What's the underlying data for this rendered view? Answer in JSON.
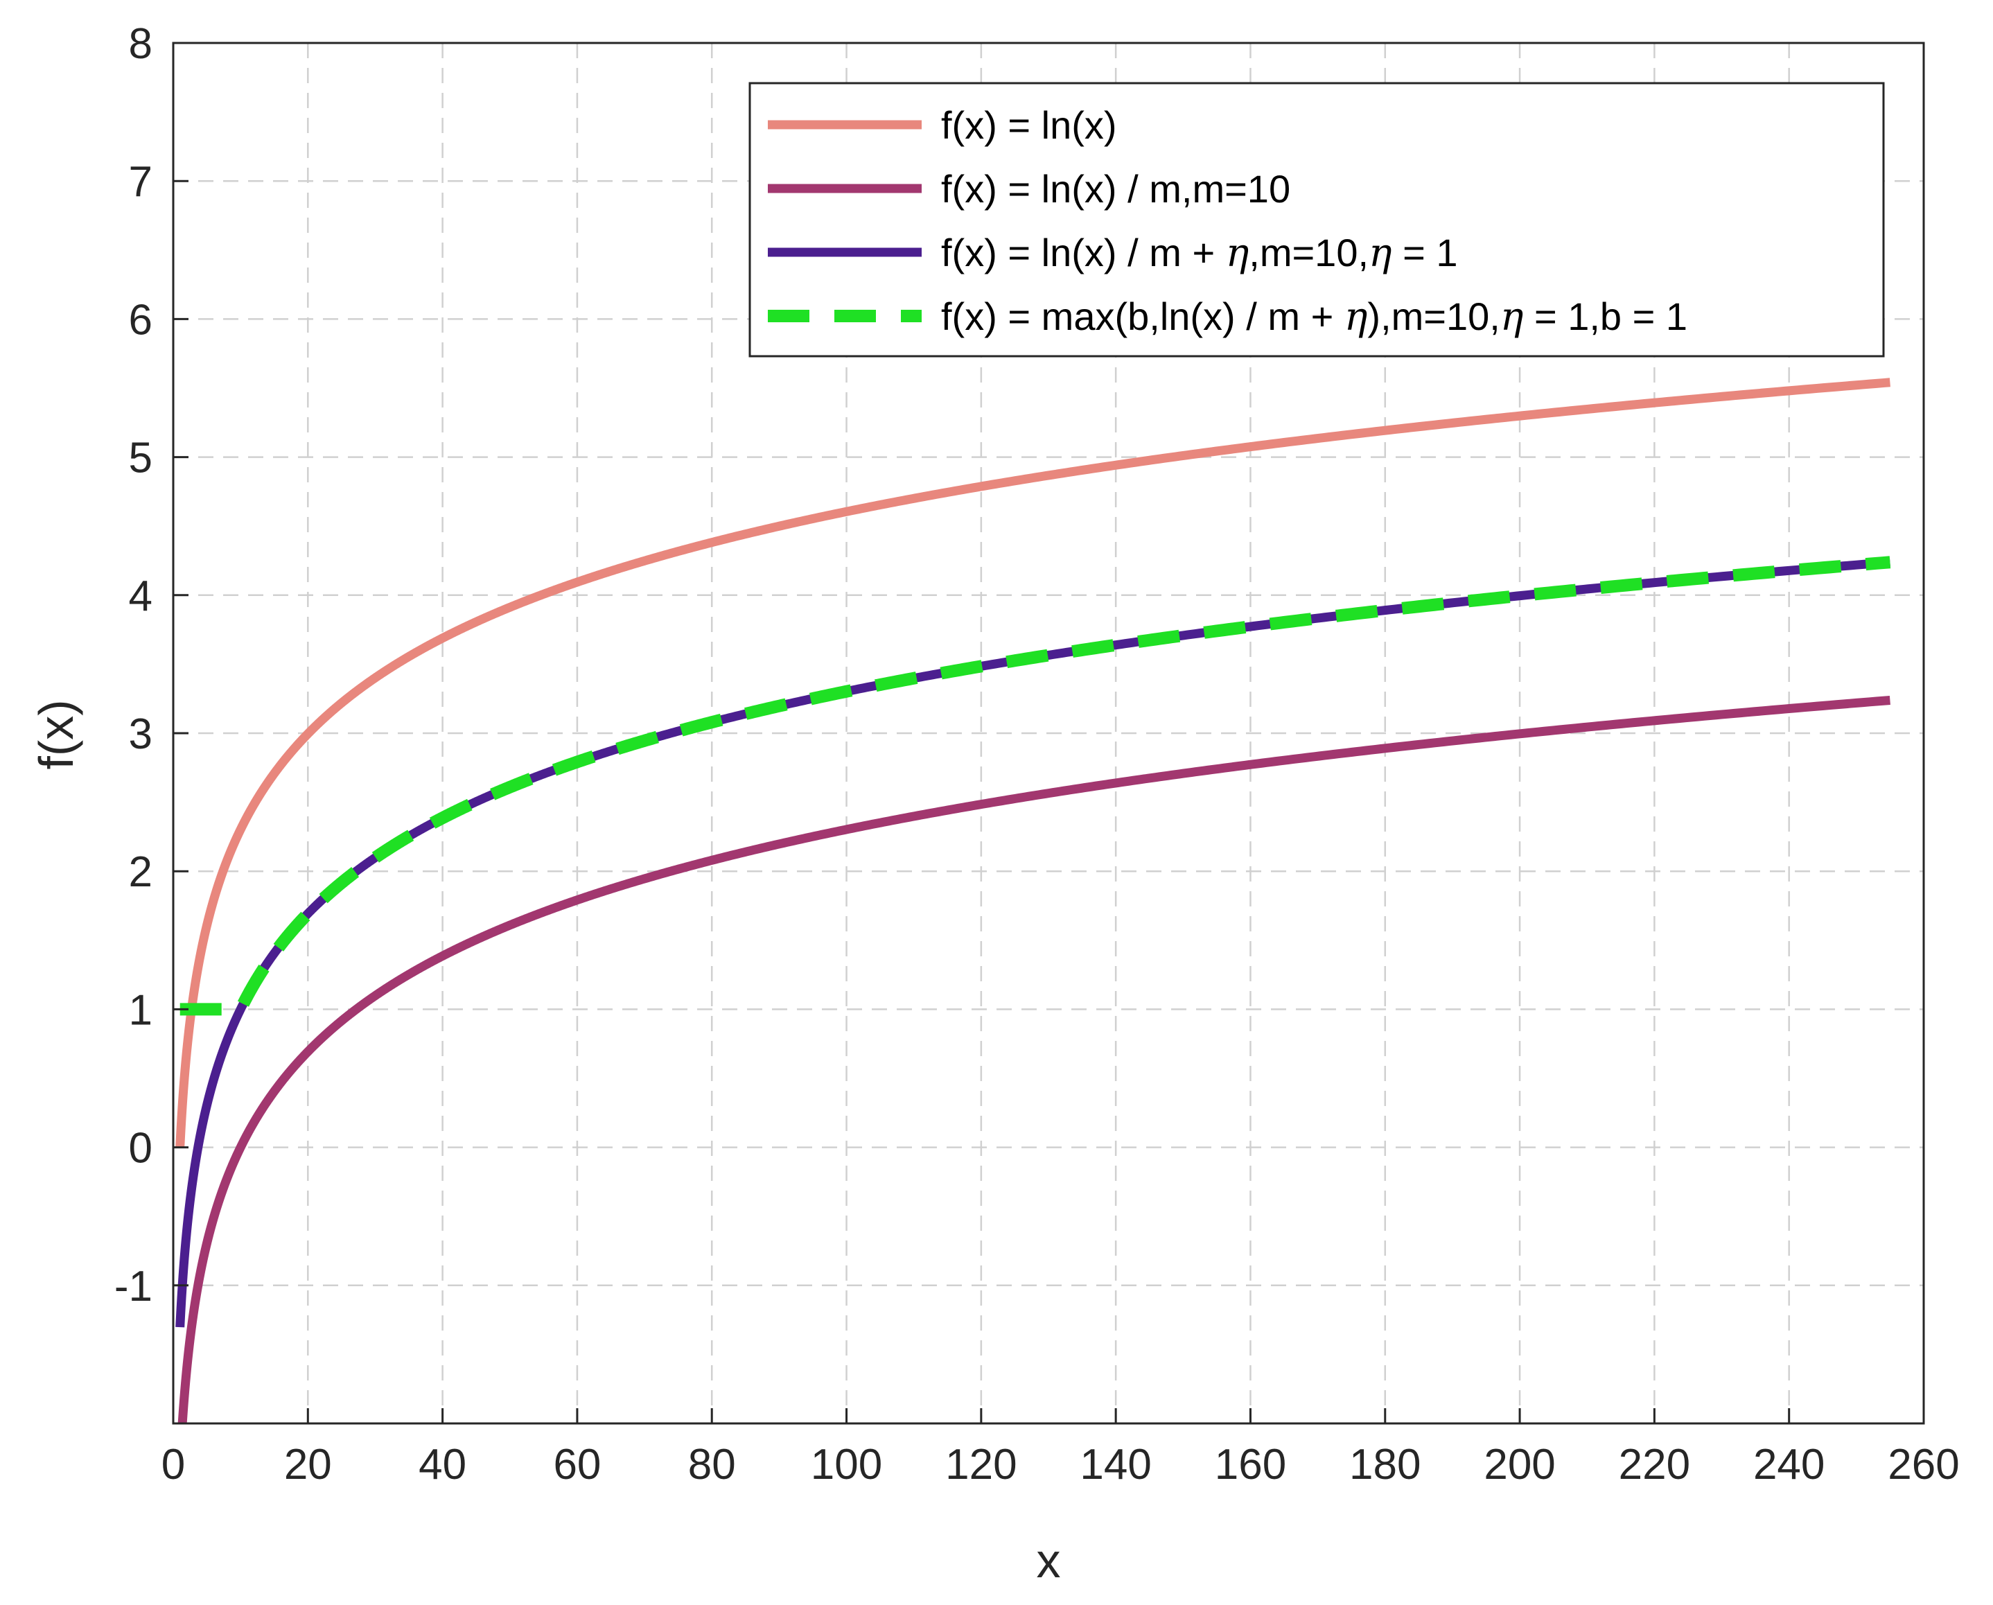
{
  "chart_data": {
    "type": "line",
    "title": "",
    "xlabel": "x",
    "ylabel": "f(x)",
    "xlim": [
      0,
      260
    ],
    "ylim": [
      -2,
      8
    ],
    "xticks": [
      0,
      20,
      40,
      60,
      80,
      100,
      120,
      140,
      160,
      180,
      200,
      220,
      240,
      260
    ],
    "xtick_labels": [
      "0",
      "20",
      "40",
      "60",
      "80",
      "100",
      "120",
      "140",
      "160",
      "180",
      "200",
      "220",
      "240",
      "260"
    ],
    "yticks": [
      -1,
      0,
      1,
      2,
      3,
      4,
      5,
      6,
      7,
      8
    ],
    "ytick_labels": [
      "-1",
      "0",
      "1",
      "2",
      "3",
      "4",
      "5",
      "6",
      "7",
      "8"
    ],
    "grid": true,
    "grid_style": "dashed",
    "legend_position": "top-right",
    "x_domain": [
      1,
      255
    ],
    "series": [
      {
        "name": "f(x) = ln(x)",
        "legend_parts": [
          "f(x) = ln(x)"
        ],
        "formula": "ln",
        "color": "#E8877D",
        "dash": false,
        "x": [
          1,
          2,
          5,
          10,
          20,
          40,
          60,
          80,
          100,
          120,
          140,
          160,
          180,
          200,
          220,
          240,
          255
        ],
        "y": [
          0,
          0.69,
          1.61,
          2.3,
          3.0,
          3.69,
          4.09,
          4.38,
          4.61,
          4.79,
          4.94,
          5.08,
          5.19,
          5.3,
          5.39,
          5.48,
          5.54
        ]
      },
      {
        "name": "f(x) = ln(x) / m,m=10",
        "legend_parts": [
          "f(x) = ln(x) / m,m=10"
        ],
        "formula": "ln_minus",
        "color": "#A2376F",
        "dash": false,
        "x": [
          1,
          2,
          5,
          10,
          20,
          40,
          60,
          80,
          100,
          120,
          140,
          160,
          180,
          200,
          220,
          240,
          255
        ],
        "y": [
          -2.3,
          -1.61,
          -0.69,
          0,
          0.69,
          1.39,
          1.79,
          2.08,
          2.3,
          2.48,
          2.64,
          2.77,
          2.89,
          3.0,
          3.09,
          3.18,
          3.24
        ]
      },
      {
        "name": "f(x) = ln(x) / m + η,m=10,η = 1",
        "legend_parts": [
          "f(x) = ln(x) / m + ",
          "η",
          ",m=10,",
          "η",
          " = 1"
        ],
        "formula": "ln_minus_plus",
        "color": "#4B1F8F",
        "dash": false,
        "x": [
          1,
          2,
          5,
          10,
          20,
          40,
          60,
          80,
          100,
          120,
          140,
          160,
          180,
          200,
          220,
          240,
          255
        ],
        "y": [
          -1.3,
          -0.61,
          0.31,
          1.0,
          1.69,
          2.39,
          2.79,
          3.08,
          3.3,
          3.48,
          3.64,
          3.77,
          3.89,
          4.0,
          4.09,
          4.18,
          4.24
        ]
      },
      {
        "name": "f(x) = max(b,ln(x) / m + η),m=10,η = 1,b = 1",
        "legend_parts": [
          "f(x) = max(b,ln(x) / m + ",
          "η",
          "),m=10,",
          "η",
          " = 1,b = 1"
        ],
        "formula": "max_b",
        "color": "#1FE024",
        "dash": true,
        "x": [
          1,
          2,
          5,
          10,
          20,
          40,
          60,
          80,
          100,
          120,
          140,
          160,
          180,
          200,
          220,
          240,
          255
        ],
        "y": [
          1.0,
          1.0,
          1.0,
          1.0,
          1.69,
          2.39,
          2.79,
          3.08,
          3.3,
          3.48,
          3.64,
          3.77,
          3.89,
          4.0,
          4.09,
          4.18,
          4.24
        ]
      }
    ]
  }
}
